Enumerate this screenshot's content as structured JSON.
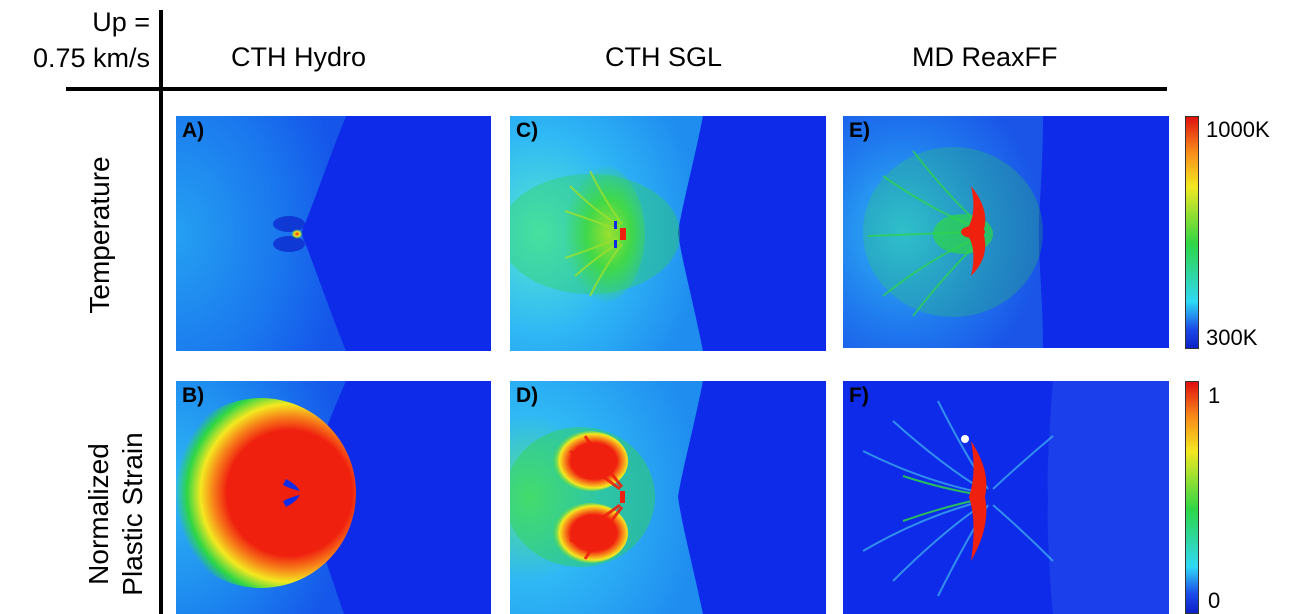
{
  "header": {
    "up_line1": "Up =",
    "up_line2": "0.75 km/s",
    "columns": [
      "CTH Hydro",
      "CTH SGL",
      "MD ReaxFF"
    ]
  },
  "rows": {
    "temperature": "Temperature",
    "strain_line1": "Normalized",
    "strain_line2": "Plastic Strain"
  },
  "panels": {
    "A": "A)",
    "B": "B)",
    "C": "C)",
    "D": "D)",
    "E": "E)",
    "F": "F)"
  },
  "colorbars": {
    "temperature": {
      "max_label": "1000K",
      "min_label": "300K"
    },
    "strain": {
      "max_label": "1",
      "min_label": "0"
    }
  },
  "colors": {
    "background_blue": "#0d2be8",
    "cyan": "#2fb8f5",
    "green": "#2ed646",
    "yellow": "#f4e820",
    "orange": "#f78a1a",
    "red": "#f0200f"
  }
}
